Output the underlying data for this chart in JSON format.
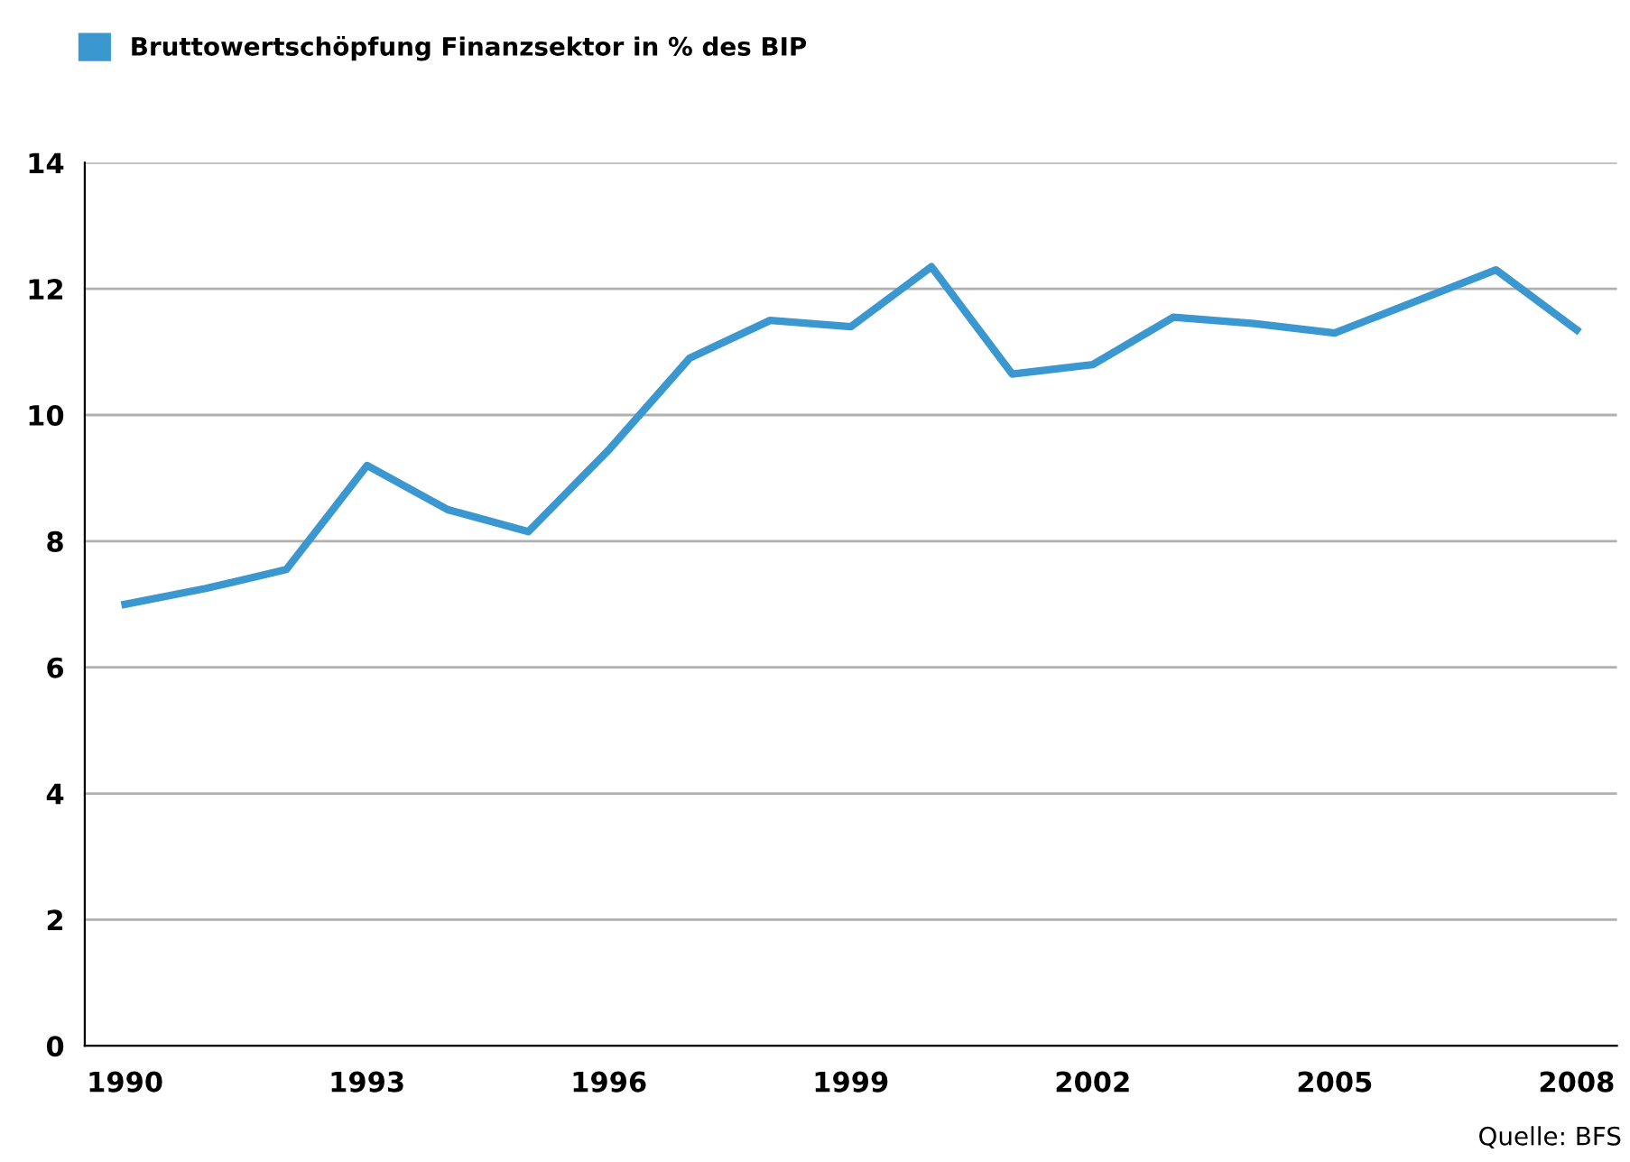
{
  "chart_data": {
    "type": "line",
    "x": [
      1990,
      1991,
      1992,
      1993,
      1994,
      1995,
      1996,
      1997,
      1998,
      1999,
      2000,
      2001,
      2002,
      2003,
      2004,
      2005,
      2006,
      2007,
      2008
    ],
    "series": [
      {
        "name": "Bruttowertschöpfung Finanzsektor in % des BIP",
        "color": "#3a97cf",
        "values": [
          7.0,
          7.25,
          7.55,
          9.2,
          8.5,
          8.15,
          9.45,
          10.9,
          11.5,
          11.4,
          12.35,
          10.65,
          10.8,
          11.55,
          11.45,
          11.3,
          11.8,
          12.3,
          11.35
        ]
      }
    ],
    "xlim": [
      1989.5,
      2008.5
    ],
    "xticks": [
      1990,
      1993,
      1996,
      1999,
      2002,
      2005,
      2008
    ],
    "ylim": [
      0,
      14
    ],
    "yticks": [
      0,
      2,
      4,
      6,
      8,
      10,
      12,
      14
    ],
    "grid": "y",
    "legend": "top left",
    "marker": "none",
    "line_style": "solid",
    "annotations": [
      "Quelle: BFS"
    ]
  }
}
